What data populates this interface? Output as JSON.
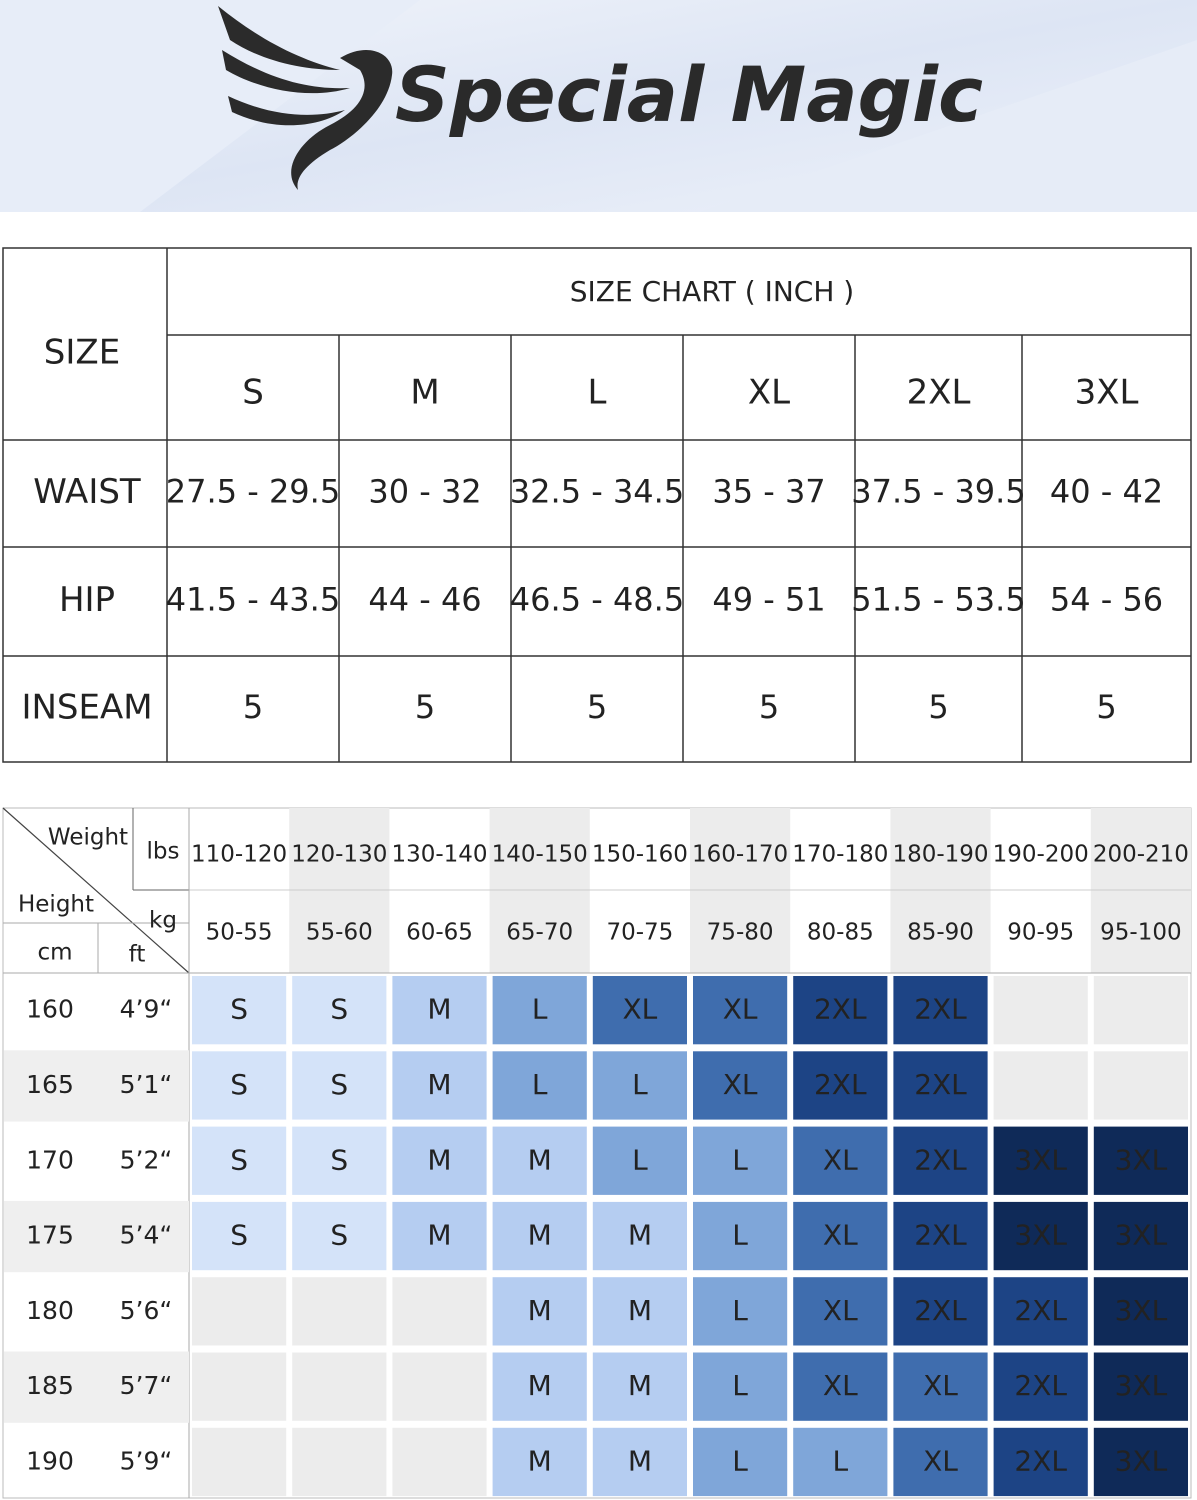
{
  "header": {
    "brand": "Special Magic"
  },
  "size_table": {
    "corner": "SIZE",
    "title": "SIZE CHART ( INCH )",
    "sizes": [
      "S",
      "M",
      "L",
      "XL",
      "2XL",
      "3XL"
    ],
    "rows": [
      {
        "label": "WAIST",
        "values": [
          "27.5 - 29.5",
          "30 - 32",
          "32.5 - 34.5",
          "35 - 37",
          "37.5 - 39.5",
          "40 - 42"
        ]
      },
      {
        "label": "HIP",
        "values": [
          "41.5 - 43.5",
          "44 - 46",
          "46.5 - 48.5",
          "49 - 51",
          "51.5 - 53.5",
          "54 - 56"
        ]
      },
      {
        "label": "INSEAM",
        "values": [
          5,
          5,
          5,
          5,
          5,
          5
        ]
      }
    ]
  },
  "fit_table": {
    "weight_label": "Weight",
    "height_label": "Height",
    "lbs_label": "lbs",
    "kg_label": "kg",
    "cm_label": "cm",
    "ft_label": "ft",
    "lbs_ranges": [
      "110-120",
      "120-130",
      "130-140",
      "140-150",
      "150-160",
      "160-170",
      "170-180",
      "180-190",
      "190-200",
      "200-210"
    ],
    "kg_ranges": [
      "50-55",
      "55-60",
      "60-65",
      "65-70",
      "70-75",
      "75-80",
      "80-85",
      "85-90",
      "90-95",
      "95-100"
    ],
    "size_colors": {
      "S": "#d4e3f9",
      "M": "#b5cdf1",
      "L": "#7fa6d9",
      "XL": "#3f6dae",
      "2XL": "#1d4485",
      "3XL": "#0f2a58"
    },
    "rows": [
      {
        "cm": 160,
        "ft": "4’9“",
        "sizes": [
          "S",
          "S",
          "M",
          "L",
          "XL",
          "XL",
          "2XL",
          "2XL",
          null,
          null
        ]
      },
      {
        "cm": 165,
        "ft": "5’1“",
        "sizes": [
          "S",
          "S",
          "M",
          "L",
          "L",
          "XL",
          "2XL",
          "2XL",
          null,
          null
        ]
      },
      {
        "cm": 170,
        "ft": "5’2“",
        "sizes": [
          "S",
          "S",
          "M",
          "M",
          "L",
          "L",
          "XL",
          "2XL",
          "3XL",
          "3XL"
        ]
      },
      {
        "cm": 175,
        "ft": "5’4“",
        "sizes": [
          "S",
          "S",
          "M",
          "M",
          "M",
          "L",
          "XL",
          "2XL",
          "3XL",
          "3XL"
        ]
      },
      {
        "cm": 180,
        "ft": "5’6“",
        "sizes": [
          null,
          null,
          null,
          "M",
          "M",
          "L",
          "XL",
          "2XL",
          "2XL",
          "3XL"
        ]
      },
      {
        "cm": 185,
        "ft": "5’7“",
        "sizes": [
          null,
          null,
          null,
          "M",
          "M",
          "L",
          "XL",
          "XL",
          "2XL",
          "3XL"
        ]
      },
      {
        "cm": 190,
        "ft": "5’9“",
        "sizes": [
          null,
          null,
          null,
          "M",
          "M",
          "L",
          "L",
          "XL",
          "2XL",
          "3XL"
        ]
      }
    ]
  }
}
